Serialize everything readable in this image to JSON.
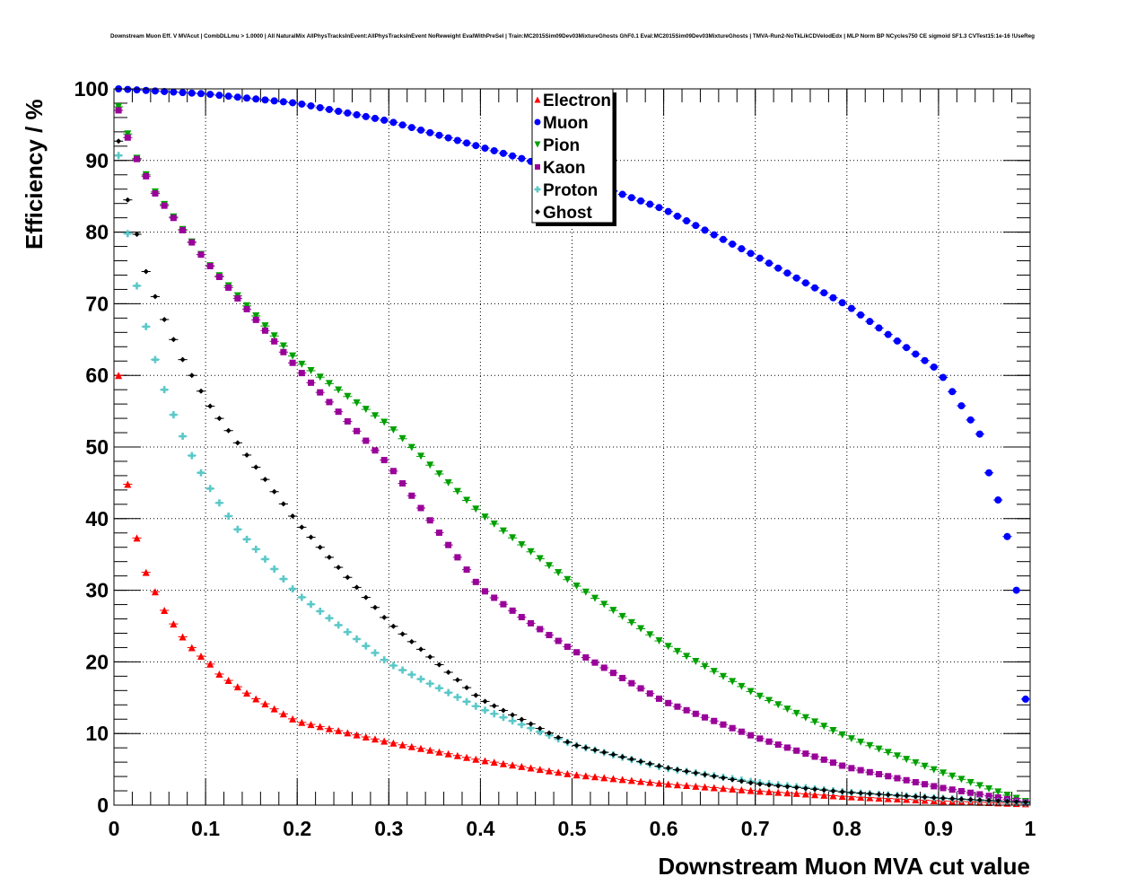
{
  "chart_data": {
    "type": "scatter",
    "title": "Downstream Muon Eff. V MVAcut | CombDLLmu > 1.0000 | All NaturalMix AllPhysTracksInEvent:AllPhysTracksInEvent NoReweight EvalWithPreSel | Train:MC2015Sim09Dev03MixtureGhosts GhF0.1 Eval:MC2015Sim09Dev03MixtureGhosts | TMVA-Run2-NoTkLikCDVelodEdx | MLP Norm BP NCycles750 CE sigmoid SF1.3 CVTest15:1e-16 !UseReg",
    "xlabel": "Downstream Muon MVA cut value",
    "ylabel": "Efficiency / %",
    "xlim": [
      0,
      1
    ],
    "ylim": [
      0,
      100
    ],
    "grid": true,
    "bin_width": 0.01,
    "legend_placement": "top-center",
    "xticks": [
      "0",
      "0.1",
      "0.2",
      "0.3",
      "0.4",
      "0.5",
      "0.6",
      "0.7",
      "0.8",
      "0.9",
      "1"
    ],
    "yticks": [
      "0",
      "10",
      "20",
      "30",
      "40",
      "50",
      "60",
      "70",
      "80",
      "90",
      "100"
    ],
    "series": [
      {
        "name": "Electron",
        "marker": "triangle-up",
        "color": "#ff0000",
        "x": [
          0.005,
          0.015,
          0.025,
          0.035,
          0.045,
          0.055,
          0.065,
          0.075,
          0.085,
          0.095,
          0.105,
          0.115,
          0.15,
          0.2,
          0.3,
          0.4,
          0.5,
          0.6,
          0.7,
          0.8,
          0.9,
          0.995
        ],
        "y": [
          60,
          44.8,
          37.3,
          32.5,
          29.8,
          27.2,
          25.3,
          23.5,
          22,
          20.8,
          19.7,
          18.3,
          15.2,
          11.7,
          8.8,
          6.3,
          4.3,
          3,
          2,
          1.2,
          0.6,
          0.2
        ]
      },
      {
        "name": "Muon",
        "marker": "circle",
        "color": "#0000ff",
        "x": [
          0.005,
          0.1,
          0.2,
          0.3,
          0.45,
          0.6,
          0.7,
          0.8,
          0.9,
          0.945,
          0.955,
          0.965,
          0.975,
          0.985,
          0.995
        ],
        "y": [
          100,
          99.3,
          98,
          95.5,
          90.1,
          83.2,
          76.7,
          69.8,
          60.7,
          51.8,
          46.4,
          42.6,
          37.5,
          30,
          14.8
        ]
      },
      {
        "name": "Pion",
        "marker": "triangle-down",
        "color": "#00a000",
        "x": [
          0.005,
          0.015,
          0.025,
          0.035,
          0.045,
          0.1,
          0.2,
          0.3,
          0.4,
          0.5,
          0.6,
          0.7,
          0.8,
          0.9,
          0.995
        ],
        "y": [
          97.5,
          93.7,
          90.3,
          88,
          85.6,
          76,
          62,
          53,
          40.7,
          31,
          22.5,
          15.5,
          9.5,
          4.7,
          0.5
        ]
      },
      {
        "name": "Kaon",
        "marker": "square",
        "color": "#990099",
        "x": [
          0.005,
          0.015,
          0.025,
          0.035,
          0.045,
          0.1,
          0.2,
          0.3,
          0.4,
          0.45,
          0.5,
          0.6,
          0.7,
          0.8,
          0.9,
          0.995
        ],
        "y": [
          97,
          93.2,
          90.2,
          87.8,
          85.4,
          76,
          61,
          47.5,
          30.3,
          25.8,
          21.7,
          14.5,
          9.5,
          5.3,
          2.5,
          0.4
        ]
      },
      {
        "name": "Proton",
        "marker": "cross",
        "color": "#5bc8c8",
        "x": [
          0.005,
          0.015,
          0.025,
          0.035,
          0.045,
          0.055,
          0.065,
          0.075,
          0.085,
          0.095,
          0.105,
          0.115,
          0.135,
          0.2,
          0.3,
          0.4,
          0.5,
          0.6,
          0.7,
          0.8,
          0.9,
          0.995
        ],
        "y": [
          90.7,
          79.8,
          72.5,
          66.8,
          62.2,
          58,
          54.5,
          51.5,
          48.8,
          46.4,
          44.2,
          42.2,
          38.5,
          29.5,
          19.8,
          13.5,
          8.5,
          5.2,
          3.2,
          1.8,
          1,
          0.3
        ]
      },
      {
        "name": "Ghost",
        "marker": "diamond",
        "color": "#000000",
        "x": [
          0.005,
          0.015,
          0.025,
          0.035,
          0.045,
          0.055,
          0.065,
          0.075,
          0.085,
          0.095,
          0.105,
          0.2,
          0.3,
          0.4,
          0.5,
          0.6,
          0.7,
          0.8,
          0.9,
          0.995
        ],
        "y": [
          92.7,
          84.5,
          79.7,
          74.5,
          71,
          67.8,
          65,
          62.2,
          60,
          57.8,
          55.7,
          39.5,
          25.5,
          14.8,
          8.5,
          5.3,
          3,
          1.8,
          1,
          0.4
        ]
      }
    ]
  }
}
